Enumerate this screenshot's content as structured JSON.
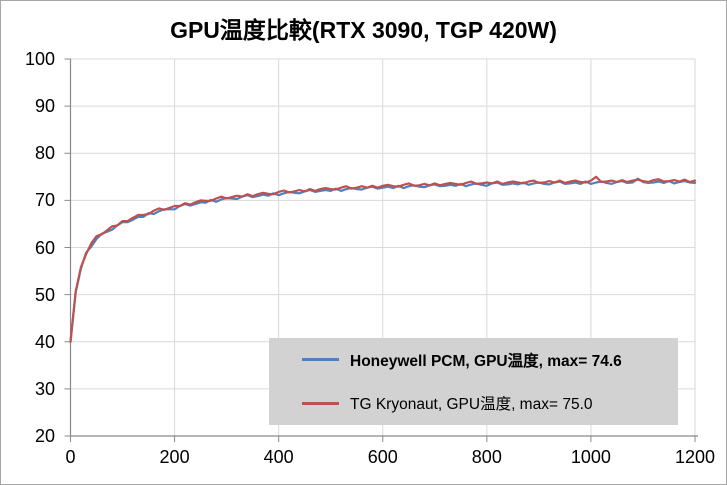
{
  "window": {
    "background": "#FFFFFF",
    "border_color": "#A6A6A6"
  },
  "chart_data": {
    "type": "line",
    "title": "GPU温度比較(RTX 3090, TGP 420W)",
    "xlabel": "",
    "ylabel": "",
    "xlim": [
      0,
      1200
    ],
    "ylim": [
      20,
      100
    ],
    "x_ticks": [
      0,
      200,
      400,
      600,
      800,
      1000,
      1200
    ],
    "y_ticks": [
      100,
      90,
      80,
      70,
      60,
      50,
      40,
      30,
      20
    ],
    "grid": true,
    "grid_color": "#D9D9D9",
    "axis_color": "#898989",
    "tick_label_color": "#000000",
    "legend_position": "inside-bottom-right",
    "legend_background": "#D2D2D2",
    "x_start": 0,
    "x_step": 10,
    "series": [
      {
        "name": "Honeywell PCM, GPU温度, max= 74.6",
        "color": "#4F81BD",
        "max": 74.6,
        "bold_in_legend": true,
        "values": [
          40.0,
          50.5,
          55.5,
          58.9,
          60.2,
          61.8,
          62.9,
          63.3,
          63.8,
          64.7,
          65.4,
          65.4,
          65.9,
          66.5,
          66.5,
          67.3,
          67.1,
          67.7,
          68.1,
          68.1,
          68.1,
          68.8,
          69.2,
          68.9,
          69.2,
          69.6,
          69.5,
          70.1,
          69.7,
          70.2,
          70.5,
          70.4,
          70.3,
          70.8,
          71.1,
          70.7,
          70.9,
          71.2,
          71.0,
          71.5,
          71.1,
          71.5,
          71.8,
          71.6,
          71.5,
          71.9,
          72.2,
          71.8,
          72.0,
          72.2,
          72.0,
          72.5,
          72.0,
          72.4,
          72.6,
          72.4,
          72.3,
          72.7,
          72.9,
          72.5,
          72.7,
          72.9,
          72.6,
          73.1,
          72.6,
          73.0,
          73.2,
          72.9,
          72.8,
          73.2,
          73.4,
          73.0,
          73.1,
          73.3,
          73.1,
          73.5,
          73.0,
          73.4,
          73.6,
          73.3,
          73.1,
          73.6,
          73.8,
          73.3,
          73.4,
          73.6,
          73.4,
          73.8,
          73.3,
          73.6,
          73.8,
          73.5,
          73.4,
          73.8,
          74.0,
          73.5,
          73.6,
          73.8,
          73.5,
          74.0,
          73.5,
          73.8,
          74.0,
          73.7,
          73.5,
          73.9,
          74.1,
          73.7,
          73.8,
          74.6,
          73.9,
          73.7,
          73.8,
          74.0,
          73.7,
          74.1,
          73.6,
          73.9,
          74.1,
          73.8,
          73.7
        ]
      },
      {
        "name": "TG Kryonaut, GPU温度, max= 75.0",
        "color": "#C0504D",
        "max": 75.0,
        "bold_in_legend": false,
        "values": [
          40.0,
          50.7,
          55.8,
          58.6,
          60.9,
          62.4,
          62.8,
          63.6,
          64.5,
          64.7,
          65.6,
          65.6,
          66.3,
          66.9,
          66.9,
          67.1,
          67.8,
          68.3,
          68.0,
          68.4,
          68.8,
          68.8,
          69.4,
          69.1,
          69.6,
          70.0,
          69.9,
          69.9,
          70.4,
          70.8,
          70.4,
          70.7,
          71.0,
          70.8,
          71.3,
          70.9,
          71.3,
          71.6,
          71.4,
          71.3,
          71.8,
          72.1,
          71.7,
          71.9,
          72.2,
          71.9,
          72.4,
          72.0,
          72.4,
          72.6,
          72.4,
          72.3,
          72.7,
          73.0,
          72.5,
          72.7,
          73.0,
          72.7,
          73.1,
          72.7,
          73.1,
          73.3,
          73.0,
          72.9,
          73.3,
          73.6,
          73.1,
          73.2,
          73.5,
          73.2,
          73.6,
          73.2,
          73.5,
          73.7,
          73.5,
          73.3,
          73.7,
          74.0,
          73.5,
          73.6,
          73.8,
          73.6,
          74.0,
          73.5,
          73.8,
          74.0,
          73.8,
          73.6,
          74.0,
          74.2,
          73.7,
          73.8,
          74.1,
          73.8,
          74.2,
          73.7,
          74.0,
          74.2,
          73.9,
          73.8,
          74.2,
          75.0,
          73.9,
          74.0,
          74.2,
          73.9,
          74.3,
          73.9,
          74.2,
          74.4,
          74.1,
          73.9,
          74.3,
          74.5,
          74.0,
          74.1,
          74.3,
          74.0,
          74.4,
          73.9,
          74.2
        ]
      }
    ]
  }
}
